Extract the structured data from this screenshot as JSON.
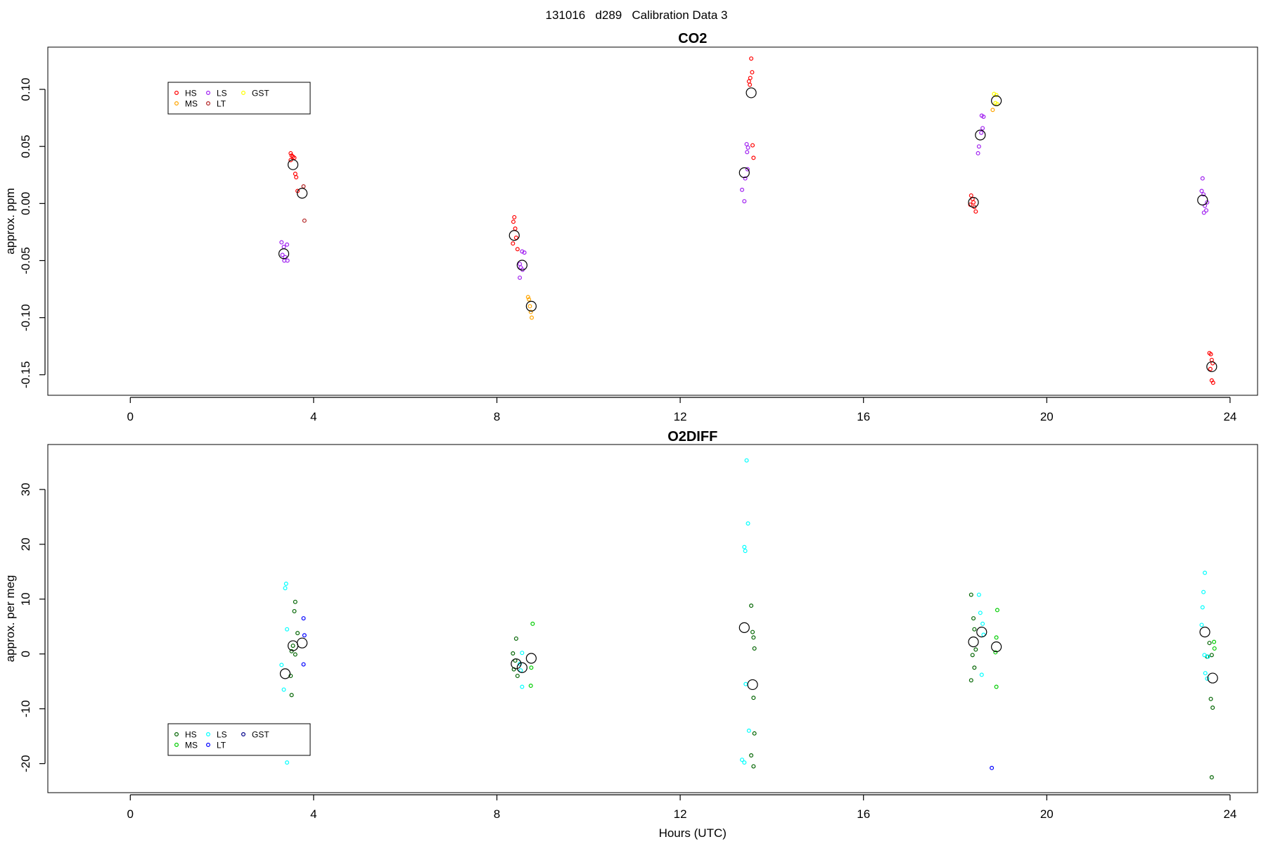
{
  "page_title": "131016   d289   Calibration Data 3",
  "chart_data": [
    {
      "type": "scatter",
      "title": "CO2",
      "xlabel": "",
      "ylabel": "approx. ppm",
      "xlim": [
        -1.8,
        24.6
      ],
      "ylim": [
        -0.168,
        0.137
      ],
      "xticks": [
        0,
        4,
        8,
        12,
        16,
        20,
        24
      ],
      "xtick_labels": [
        "0",
        "4",
        "8",
        "12",
        "16",
        "20",
        "24"
      ],
      "yticks": [
        -0.15,
        -0.1,
        -0.05,
        0,
        0.05,
        0.1
      ],
      "ytick_labels": [
        "-0.15",
        "-0.10",
        "-0.05",
        "0.00",
        "0.05",
        "0.10"
      ],
      "grid": false,
      "legend_placement": "top-left",
      "legend": [
        {
          "label": "HS",
          "color": "#ff0000"
        },
        {
          "label": "LS",
          "color": "#a020f0"
        },
        {
          "label": "GST",
          "color": "#ffff00"
        },
        {
          "label": "MS",
          "color": "#ffa500"
        },
        {
          "label": "LT",
          "color": "#b22222"
        }
      ],
      "series": [
        {
          "color": "#ff0000",
          "points": [
            [
              3.5,
              0.044
            ],
            [
              3.52,
              0.042
            ],
            [
              3.55,
              0.041
            ],
            [
              3.58,
              0.04
            ],
            [
              3.5,
              0.038
            ],
            [
              3.6,
              0.026
            ],
            [
              3.62,
              0.023
            ],
            [
              3.65,
              0.011
            ],
            [
              8.38,
              -0.012
            ],
            [
              8.36,
              -0.016
            ],
            [
              8.4,
              -0.022
            ],
            [
              8.35,
              -0.035
            ],
            [
              8.42,
              -0.03
            ],
            [
              8.45,
              -0.04
            ],
            [
              13.55,
              0.127
            ],
            [
              13.57,
              0.115
            ],
            [
              13.53,
              0.11
            ],
            [
              13.5,
              0.107
            ],
            [
              13.52,
              0.104
            ],
            [
              13.58,
              0.051
            ],
            [
              13.6,
              0.04
            ],
            [
              18.35,
              0.007
            ],
            [
              18.38,
              0.004
            ],
            [
              18.4,
              0.001
            ],
            [
              18.33,
              -0.001
            ],
            [
              18.42,
              -0.003
            ],
            [
              18.45,
              -0.007
            ],
            [
              23.55,
              -0.131
            ],
            [
              23.58,
              -0.132
            ],
            [
              23.6,
              -0.137
            ],
            [
              23.62,
              -0.14
            ],
            [
              23.57,
              -0.145
            ],
            [
              23.6,
              -0.155
            ],
            [
              23.63,
              -0.157
            ]
          ]
        },
        {
          "color": "#b22222",
          "points": [
            [
              3.78,
              0.015
            ],
            [
              3.8,
              -0.015
            ]
          ]
        },
        {
          "color": "#a020f0",
          "points": [
            [
              3.3,
              -0.034
            ],
            [
              3.35,
              -0.038
            ],
            [
              3.42,
              -0.036
            ],
            [
              3.32,
              -0.045
            ],
            [
              3.38,
              -0.047
            ],
            [
              3.36,
              -0.05
            ],
            [
              3.43,
              -0.05
            ],
            [
              8.55,
              -0.042
            ],
            [
              8.6,
              -0.043
            ],
            [
              8.5,
              -0.053
            ],
            [
              8.52,
              -0.056
            ],
            [
              8.56,
              -0.058
            ],
            [
              8.5,
              -0.065
            ],
            [
              13.45,
              0.052
            ],
            [
              13.48,
              0.049
            ],
            [
              13.46,
              0.045
            ],
            [
              13.47,
              0.03
            ],
            [
              13.42,
              0.022
            ],
            [
              13.35,
              0.012
            ],
            [
              13.4,
              0.002
            ],
            [
              18.58,
              0.077
            ],
            [
              18.62,
              0.076
            ],
            [
              18.6,
              0.066
            ],
            [
              18.57,
              0.062
            ],
            [
              18.52,
              0.05
            ],
            [
              18.5,
              0.044
            ],
            [
              23.4,
              0.022
            ],
            [
              23.38,
              0.011
            ],
            [
              23.42,
              0.008
            ],
            [
              23.5,
              0.001
            ],
            [
              23.45,
              -0.002
            ],
            [
              23.48,
              -0.006
            ],
            [
              23.43,
              -0.008
            ]
          ]
        },
        {
          "color": "#ffa500",
          "points": [
            [
              8.68,
              -0.082
            ],
            [
              8.7,
              -0.084
            ],
            [
              8.72,
              -0.09
            ],
            [
              8.74,
              -0.095
            ],
            [
              8.76,
              -0.1
            ],
            [
              18.82,
              0.082
            ]
          ]
        },
        {
          "color": "#ffff00",
          "points": [
            [
              18.85,
              0.096
            ],
            [
              18.9,
              0.095
            ],
            [
              18.88,
              0.088
            ],
            [
              18.92,
              0.087
            ]
          ]
        }
      ],
      "means": [
        [
          3.55,
          0.034
        ],
        [
          3.75,
          0.009
        ],
        [
          3.35,
          -0.044
        ],
        [
          8.38,
          -0.028
        ],
        [
          8.55,
          -0.054
        ],
        [
          8.75,
          -0.09
        ],
        [
          13.4,
          0.027
        ],
        [
          13.55,
          0.097
        ],
        [
          18.4,
          0.001
        ],
        [
          18.55,
          0.06
        ],
        [
          18.9,
          0.09
        ],
        [
          23.4,
          0.003
        ],
        [
          23.6,
          -0.143
        ]
      ]
    },
    {
      "type": "scatter",
      "title": "O2DIFF",
      "xlabel": "Hours (UTC)",
      "ylabel": "approx. per meg",
      "xlim": [
        -1.8,
        24.6
      ],
      "ylim": [
        -25.3,
        38.2
      ],
      "xticks": [
        0,
        4,
        8,
        12,
        16,
        20,
        24
      ],
      "xtick_labels": [
        "0",
        "4",
        "8",
        "12",
        "16",
        "20",
        "24"
      ],
      "yticks": [
        -20,
        -10,
        0,
        10,
        20,
        30
      ],
      "ytick_labels": [
        "-20",
        "-10",
        "0",
        "10",
        "20",
        "30"
      ],
      "grid": false,
      "legend_placement": "bottom-left",
      "legend": [
        {
          "label": "HS",
          "color": "#006400"
        },
        {
          "label": "LS",
          "color": "#00ffff"
        },
        {
          "label": "GST",
          "color": "#00008b"
        },
        {
          "label": "MS",
          "color": "#00cd00"
        },
        {
          "label": "LT",
          "color": "#0000ff"
        }
      ],
      "series": [
        {
          "color": "#006400",
          "points": [
            [
              3.6,
              9.5
            ],
            [
              3.58,
              7.8
            ],
            [
              3.65,
              3.8
            ],
            [
              3.55,
              1.5
            ],
            [
              3.52,
              0.5
            ],
            [
              3.6,
              -0.1
            ],
            [
              3.5,
              -4
            ],
            [
              3.52,
              -7.5
            ],
            [
              8.42,
              2.8
            ],
            [
              8.35,
              0.1
            ],
            [
              8.4,
              -1.2
            ],
            [
              8.37,
              -2.8
            ],
            [
              8.45,
              -4
            ],
            [
              13.55,
              8.8
            ],
            [
              13.58,
              4
            ],
            [
              13.6,
              3
            ],
            [
              13.62,
              1
            ],
            [
              13.6,
              -8
            ],
            [
              13.62,
              -14.5
            ],
            [
              13.55,
              -18.5
            ],
            [
              13.6,
              -20.5
            ],
            [
              18.35,
              10.8
            ],
            [
              18.4,
              6.5
            ],
            [
              18.42,
              4.5
            ],
            [
              18.45,
              0.8
            ],
            [
              18.38,
              -0.2
            ],
            [
              18.42,
              -2.5
            ],
            [
              18.35,
              -4.8
            ],
            [
              23.55,
              2
            ],
            [
              23.6,
              -0.2
            ],
            [
              23.58,
              -8.2
            ],
            [
              23.62,
              -9.8
            ],
            [
              23.6,
              -22.5
            ],
            [
              23.5,
              -0.5
            ]
          ]
        },
        {
          "color": "#00cd00",
          "points": [
            [
              8.78,
              5.5
            ],
            [
              8.75,
              -2.5
            ],
            [
              8.74,
              -5.8
            ],
            [
              18.92,
              8
            ],
            [
              18.9,
              3
            ],
            [
              18.88,
              0.3
            ],
            [
              18.9,
              -6
            ],
            [
              23.65,
              2.2
            ],
            [
              23.66,
              1
            ]
          ]
        },
        {
          "color": "#00ffff",
          "points": [
            [
              3.4,
              12.8
            ],
            [
              3.38,
              12
            ],
            [
              3.42,
              4.5
            ],
            [
              3.3,
              -2
            ],
            [
              3.35,
              -6.5
            ],
            [
              3.42,
              -19.8
            ],
            [
              8.55,
              0.2
            ],
            [
              8.5,
              -1.8
            ],
            [
              8.52,
              -3
            ],
            [
              8.55,
              -6
            ],
            [
              13.45,
              35.3
            ],
            [
              13.48,
              23.8
            ],
            [
              13.4,
              19.5
            ],
            [
              13.42,
              18.8
            ],
            [
              13.43,
              -5.5
            ],
            [
              13.5,
              -14
            ],
            [
              13.35,
              -19.3
            ],
            [
              13.4,
              -19.8
            ],
            [
              18.52,
              10.8
            ],
            [
              18.55,
              7.5
            ],
            [
              18.6,
              5.5
            ],
            [
              18.62,
              3.5
            ],
            [
              18.58,
              -3.8
            ],
            [
              23.45,
              14.8
            ],
            [
              23.42,
              11.3
            ],
            [
              23.4,
              8.5
            ],
            [
              23.38,
              5.3
            ],
            [
              23.44,
              -0.2
            ],
            [
              23.46,
              -3.5
            ],
            [
              23.5,
              -4.5
            ],
            [
              23.52,
              -0.5
            ]
          ]
        },
        {
          "color": "#0000ff",
          "points": [
            [
              3.78,
              6.5
            ],
            [
              3.8,
              3.4
            ],
            [
              3.78,
              -1.9
            ],
            [
              18.8,
              -20.8
            ]
          ]
        }
      ],
      "means": [
        [
          3.55,
          1.5
        ],
        [
          3.75,
          2
        ],
        [
          3.38,
          -3.6
        ],
        [
          8.42,
          -1.8
        ],
        [
          8.55,
          -2.5
        ],
        [
          8.75,
          -0.8
        ],
        [
          13.4,
          4.8
        ],
        [
          13.58,
          -5.6
        ],
        [
          18.4,
          2.2
        ],
        [
          18.58,
          4
        ],
        [
          18.9,
          1.3
        ],
        [
          23.45,
          4
        ],
        [
          23.62,
          -4.4
        ]
      ]
    }
  ]
}
